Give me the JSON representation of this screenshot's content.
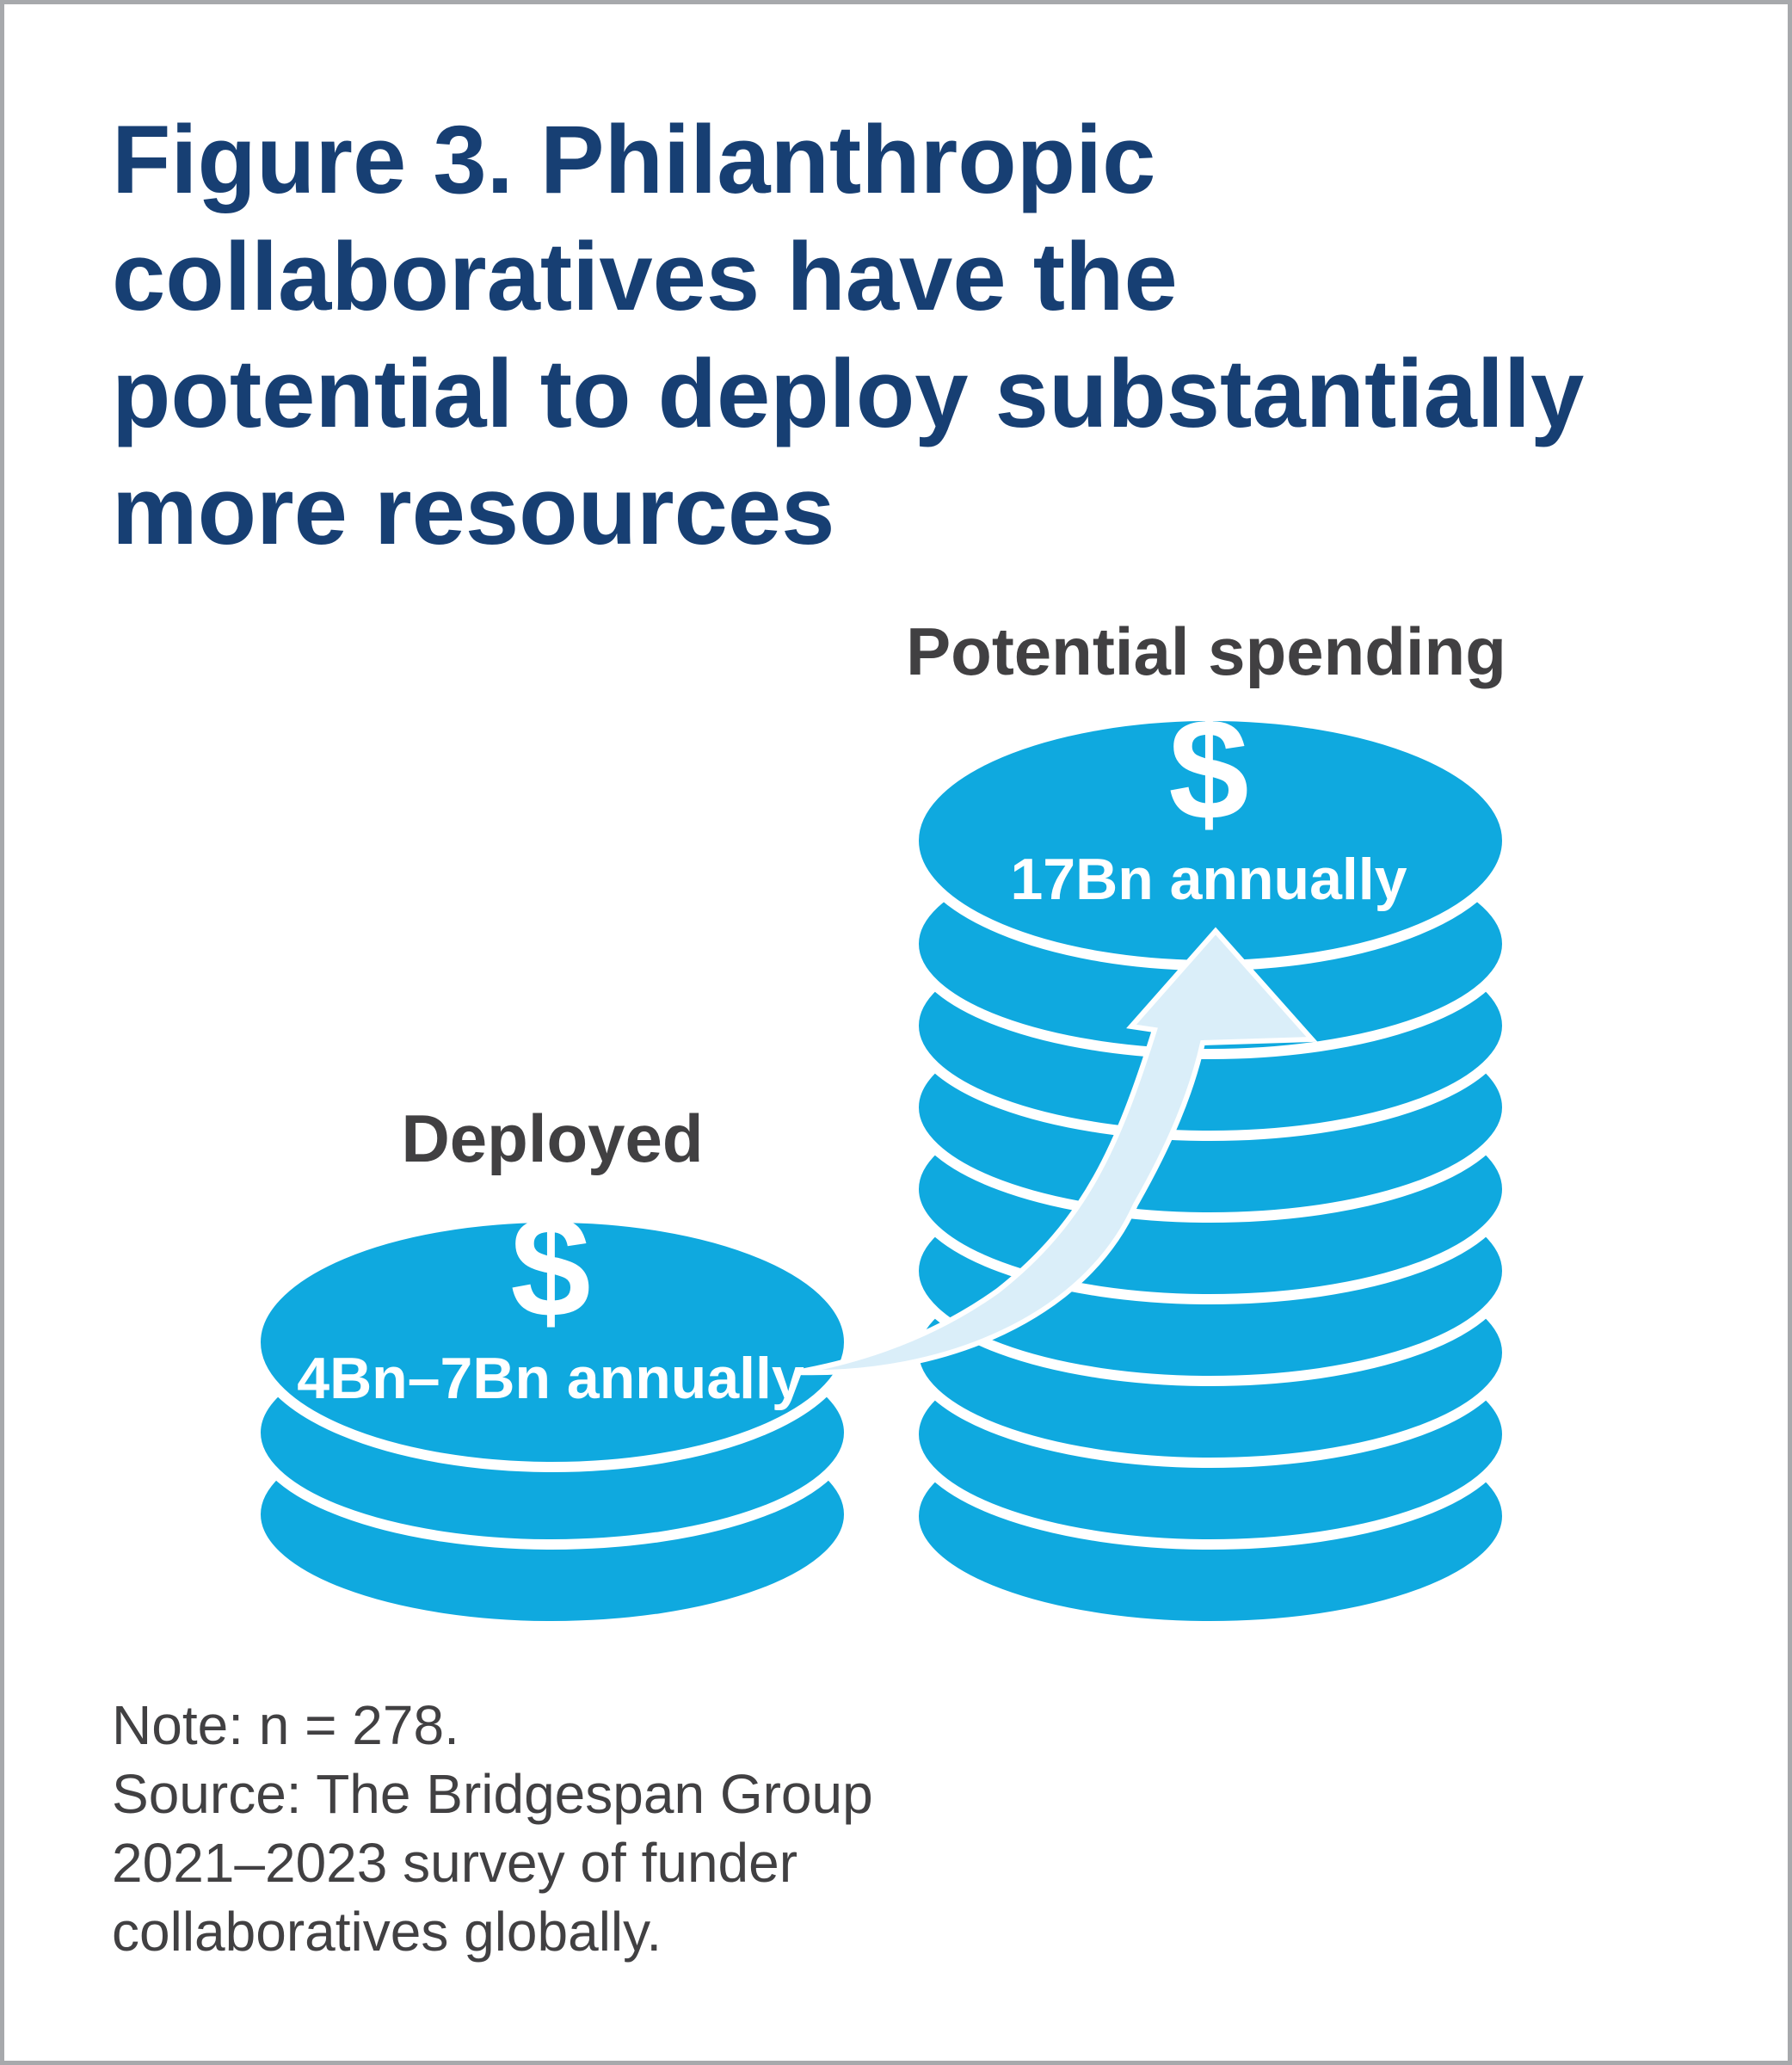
{
  "title": {
    "lines": [
      "Figure 3. Philanthropic",
      "collaboratives have the",
      "potential to deploy substantially",
      "more resources"
    ]
  },
  "deployed": {
    "label": "Deployed",
    "amount": "4Bn–7Bn annually",
    "icon": "dollar-sign-icon"
  },
  "potential": {
    "label": "Potential spending",
    "amount": "17Bn annually",
    "icon": "dollar-sign-icon"
  },
  "arrow": {
    "icon": "curved-arrow-up-icon"
  },
  "note": {
    "lines": [
      "Note: n = 278.",
      "Source: The Bridgespan Group",
      "2021–2023 survey of funder",
      "collaboratives globally."
    ]
  },
  "colors": {
    "title": "#173f73",
    "coin": "#0fa9df",
    "arrow": "#daeef9",
    "label": "#414042",
    "border": "#a7a9ac"
  }
}
